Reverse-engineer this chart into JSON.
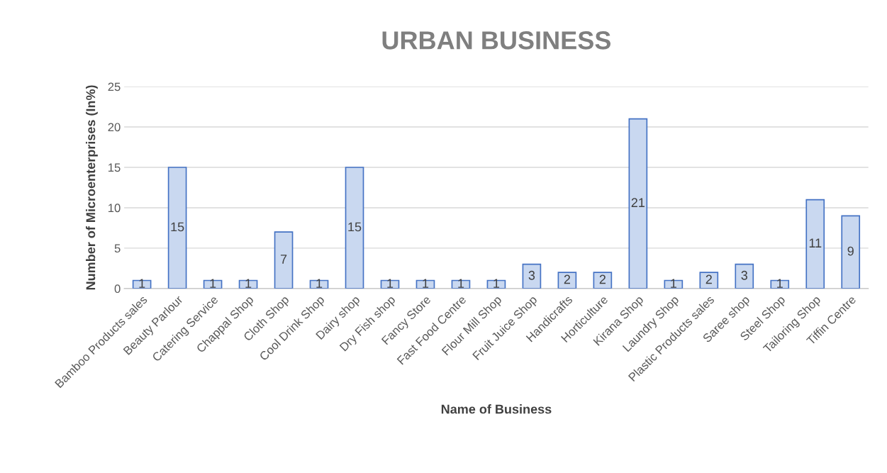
{
  "chart_data": {
    "type": "bar",
    "title": "URBAN BUSINESS",
    "xlabel": "Name of Business",
    "ylabel": "Number of Microenterprises (In%)",
    "categories": [
      "Bamboo Products sales",
      "Beauty Parlour",
      "Catering Service",
      "Chappal Shop",
      "Cloth Shop",
      "Cool Drink Shop",
      "Dairy shop",
      "Dry Fish shop",
      "Fancy Store",
      "Fast Food Centre",
      "Flour Mill Shop",
      "Fruit Juice Shop",
      "Handicrafts",
      "Horticulture",
      "Kirana Shop",
      "Laundry Shop",
      "Plastic Products sales",
      "Saree shop",
      "Steel Shop",
      "Tailoring Shop",
      "Tiffin Centre"
    ],
    "values": [
      1,
      15,
      1,
      1,
      7,
      1,
      15,
      1,
      1,
      1,
      1,
      3,
      2,
      2,
      21,
      1,
      2,
      3,
      1,
      11,
      9
    ],
    "color": "#c9d8f0",
    "ylim": [
      0,
      25
    ],
    "yticks": [
      0,
      5,
      10,
      15,
      20,
      25
    ],
    "grid": "y",
    "data_labels": true
  }
}
